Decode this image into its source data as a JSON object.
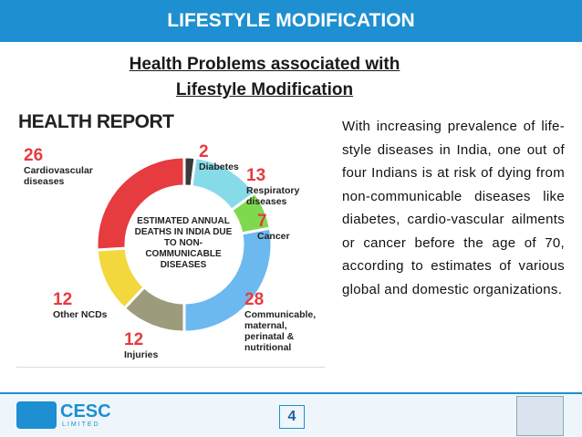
{
  "slide": {
    "title": "LIFESTYLE MODIFICATION",
    "heading": [
      "Health Problems associated with",
      "Lifestyle Modification"
    ],
    "paragraph": "With increasing prevalence of life-style diseases in India, one out of four Indians is at risk of dying from non-communicable diseases like diabetes, cardio-vascular ailments or cancer before the age of 70, according to estimates of various global and domestic organizations.",
    "page_number": "4",
    "logo_left": [
      "CESC",
      "LIMITED"
    ]
  },
  "health_report": {
    "title": "HEALTH REPORT",
    "center_label": "ESTIMATED ANNUAL DEATHS IN INDIA DUE TO NON-COMMUNICABLE DISEASES",
    "segments": [
      {
        "name": "Diabetes",
        "value": 2,
        "color": "#3a3a3a"
      },
      {
        "name": "Respiratory diseases",
        "value": 13,
        "color": "#86dbe9"
      },
      {
        "name": "Cancer",
        "value": 7,
        "color": "#7fd94f"
      },
      {
        "name": "Communicable, maternal, perinatal & nutritional",
        "value": 28,
        "color": "#6cb9ef"
      },
      {
        "name": "Injuries",
        "value": 12,
        "color": "#9c9c7c"
      },
      {
        "name": "Other NCDs",
        "value": 12,
        "color": "#f2d83c"
      },
      {
        "name": "Cardiovascular diseases",
        "value": 26,
        "color": "#e63b3f"
      }
    ]
  }
}
